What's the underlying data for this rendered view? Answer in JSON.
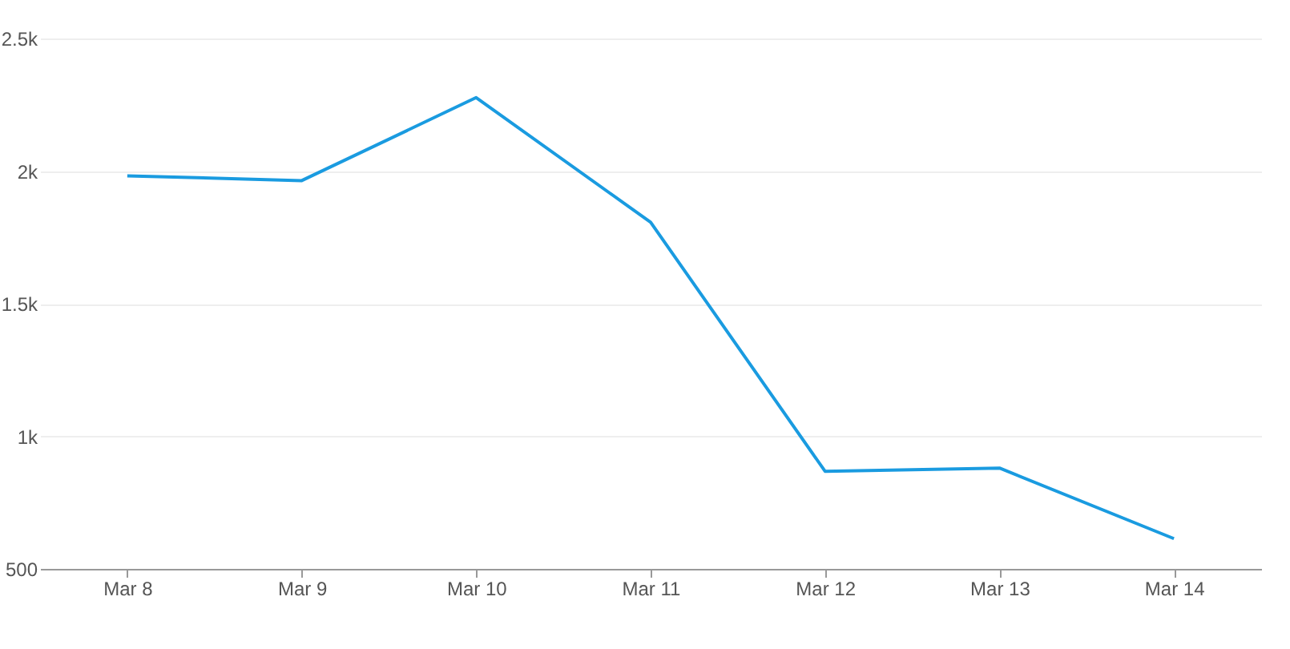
{
  "chart_data": {
    "type": "line",
    "categories": [
      "Mar 8",
      "Mar 9",
      "Mar 10",
      "Mar 11",
      "Mar 12",
      "Mar 13",
      "Mar 14"
    ],
    "series": [
      {
        "color": "#1a9be0",
        "values": [
          1982,
          1964,
          2277,
          1807,
          868,
          880,
          614
        ]
      }
    ],
    "ylim": [
      500,
      2500
    ],
    "yticks": [
      {
        "value": 500,
        "label": "500"
      },
      {
        "value": 1000,
        "label": "1k"
      },
      {
        "value": 1500,
        "label": "1.5k"
      },
      {
        "value": 2000,
        "label": "2k"
      },
      {
        "value": 2500,
        "label": "2.5k"
      }
    ],
    "grid": "y",
    "marker": "none",
    "line_style": "solid",
    "legend": false
  }
}
